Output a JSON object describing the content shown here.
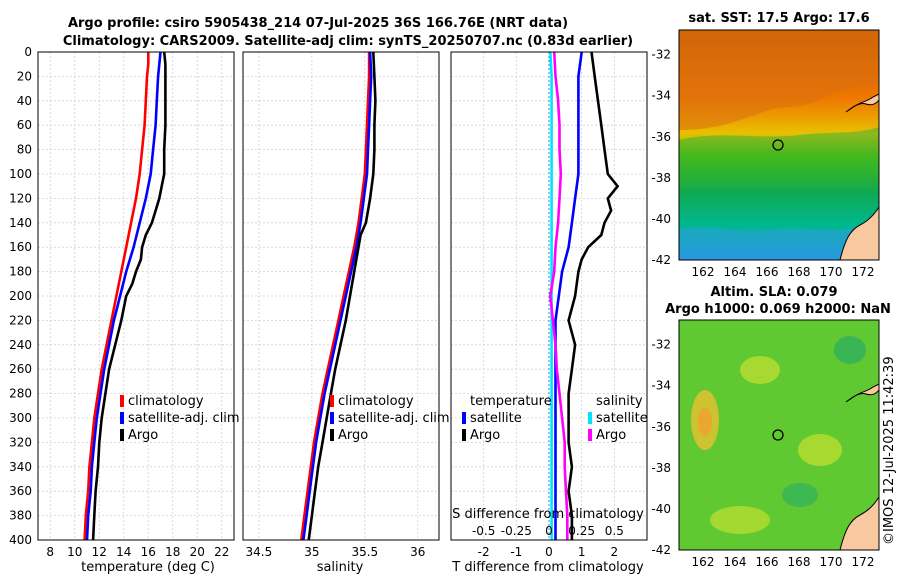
{
  "titles": {
    "line1": "Argo profile: csiro 5905438_214 07-Jul-2025 36S 166.76E (NRT data)",
    "line2": "Climatology: CARS2009. Satellite-adj clim: synTS_20250707.nc (0.83d earlier)"
  },
  "colors": {
    "clim": "#ff0000",
    "sat": "#0000ff",
    "argo": "#000000",
    "sat_s": "#00e5ff",
    "argo_s": "#ff00ff",
    "grid": "#d0d0d0"
  },
  "chart_data": [
    {
      "type": "line",
      "id": "temperature",
      "xlabel": "temperature (deg C)",
      "ylabel": "",
      "xlim": [
        7,
        23
      ],
      "ylim": [
        400,
        0
      ],
      "xticks": [
        "8",
        "10",
        "12",
        "14",
        "16",
        "18",
        "20",
        "22"
      ],
      "yticks": [
        "0",
        "20",
        "40",
        "60",
        "80",
        "100",
        "120",
        "140",
        "160",
        "180",
        "200",
        "220",
        "240",
        "260",
        "280",
        "300",
        "320",
        "340",
        "360",
        "380",
        "400"
      ],
      "legend": [
        "climatology",
        "satellite-adj. clim",
        "Argo"
      ],
      "series": [
        {
          "name": "climatology",
          "color": "clim",
          "points": [
            [
              16.0,
              0
            ],
            [
              16.0,
              10
            ],
            [
              15.9,
              20
            ],
            [
              15.8,
              40
            ],
            [
              15.7,
              60
            ],
            [
              15.5,
              80
            ],
            [
              15.3,
              100
            ],
            [
              15.0,
              120
            ],
            [
              14.6,
              140
            ],
            [
              14.2,
              160
            ],
            [
              13.8,
              180
            ],
            [
              13.4,
              200
            ],
            [
              13.0,
              220
            ],
            [
              12.6,
              240
            ],
            [
              12.2,
              260
            ],
            [
              11.9,
              280
            ],
            [
              11.6,
              300
            ],
            [
              11.4,
              320
            ],
            [
              11.2,
              340
            ],
            [
              11.1,
              360
            ],
            [
              10.9,
              380
            ],
            [
              10.8,
              400
            ]
          ]
        },
        {
          "name": "satellite-adj. clim",
          "color": "sat",
          "points": [
            [
              17.0,
              0
            ],
            [
              16.9,
              10
            ],
            [
              16.8,
              20
            ],
            [
              16.7,
              40
            ],
            [
              16.6,
              60
            ],
            [
              16.4,
              80
            ],
            [
              16.2,
              100
            ],
            [
              15.8,
              120
            ],
            [
              15.3,
              140
            ],
            [
              14.8,
              160
            ],
            [
              14.2,
              180
            ],
            [
              13.7,
              200
            ],
            [
              13.2,
              220
            ],
            [
              12.8,
              240
            ],
            [
              12.4,
              260
            ],
            [
              12.1,
              280
            ],
            [
              11.8,
              300
            ],
            [
              11.6,
              320
            ],
            [
              11.4,
              340
            ],
            [
              11.3,
              360
            ],
            [
              11.1,
              380
            ],
            [
              11.0,
              400
            ]
          ]
        },
        {
          "name": "Argo",
          "color": "argo",
          "points": [
            [
              17.3,
              0
            ],
            [
              17.4,
              10
            ],
            [
              17.4,
              20
            ],
            [
              17.4,
              40
            ],
            [
              17.4,
              60
            ],
            [
              17.3,
              80
            ],
            [
              17.3,
              100
            ],
            [
              17.1,
              110
            ],
            [
              16.9,
              120
            ],
            [
              16.6,
              130
            ],
            [
              16.3,
              140
            ],
            [
              15.8,
              150
            ],
            [
              15.5,
              160
            ],
            [
              15.4,
              170
            ],
            [
              15.0,
              180
            ],
            [
              14.7,
              190
            ],
            [
              14.2,
              200
            ],
            [
              13.8,
              220
            ],
            [
              13.3,
              240
            ],
            [
              12.8,
              260
            ],
            [
              12.5,
              280
            ],
            [
              12.2,
              300
            ],
            [
              12.0,
              320
            ],
            [
              11.9,
              340
            ],
            [
              11.7,
              360
            ],
            [
              11.6,
              380
            ],
            [
              11.5,
              400
            ]
          ]
        }
      ]
    },
    {
      "type": "line",
      "id": "salinity",
      "xlabel": "salinity",
      "ylabel": "",
      "xlim": [
        34.35,
        36.2
      ],
      "ylim": [
        400,
        0
      ],
      "xticks": [
        "34.5",
        "35",
        "35.5",
        "36"
      ],
      "legend": [
        "climatology",
        "satellite-adj. clim",
        "Argo"
      ],
      "series": [
        {
          "name": "climatology",
          "color": "clim",
          "points": [
            [
              35.54,
              0
            ],
            [
              35.54,
              20
            ],
            [
              35.53,
              40
            ],
            [
              35.52,
              60
            ],
            [
              35.51,
              80
            ],
            [
              35.5,
              100
            ],
            [
              35.47,
              120
            ],
            [
              35.44,
              140
            ],
            [
              35.4,
              160
            ],
            [
              35.35,
              180
            ],
            [
              35.3,
              200
            ],
            [
              35.25,
              220
            ],
            [
              35.2,
              240
            ],
            [
              35.15,
              260
            ],
            [
              35.1,
              280
            ],
            [
              35.06,
              300
            ],
            [
              35.02,
              320
            ],
            [
              34.99,
              340
            ],
            [
              34.96,
              360
            ],
            [
              34.93,
              380
            ],
            [
              34.9,
              400
            ]
          ]
        },
        {
          "name": "satellite-adj. clim",
          "color": "sat",
          "points": [
            [
              35.55,
              0
            ],
            [
              35.56,
              20
            ],
            [
              35.55,
              40
            ],
            [
              35.54,
              60
            ],
            [
              35.53,
              80
            ],
            [
              35.52,
              100
            ],
            [
              35.49,
              120
            ],
            [
              35.46,
              140
            ],
            [
              35.42,
              160
            ],
            [
              35.37,
              180
            ],
            [
              35.32,
              200
            ],
            [
              35.27,
              220
            ],
            [
              35.22,
              240
            ],
            [
              35.17,
              260
            ],
            [
              35.12,
              280
            ],
            [
              35.08,
              300
            ],
            [
              35.04,
              320
            ],
            [
              35.01,
              340
            ],
            [
              34.98,
              360
            ],
            [
              34.95,
              380
            ],
            [
              34.92,
              400
            ]
          ]
        },
        {
          "name": "Argo",
          "color": "argo",
          "points": [
            [
              35.58,
              0
            ],
            [
              35.59,
              20
            ],
            [
              35.6,
              40
            ],
            [
              35.59,
              60
            ],
            [
              35.59,
              80
            ],
            [
              35.58,
              100
            ],
            [
              35.55,
              120
            ],
            [
              35.51,
              140
            ],
            [
              35.46,
              150
            ],
            [
              35.44,
              160
            ],
            [
              35.4,
              180
            ],
            [
              35.36,
              200
            ],
            [
              35.32,
              220
            ],
            [
              35.27,
              240
            ],
            [
              35.22,
              260
            ],
            [
              35.18,
              280
            ],
            [
              35.14,
              300
            ],
            [
              35.1,
              320
            ],
            [
              35.06,
              340
            ],
            [
              35.03,
              360
            ],
            [
              35.0,
              380
            ],
            [
              34.97,
              400
            ]
          ]
        }
      ]
    },
    {
      "type": "line",
      "id": "differences",
      "xlabel": "T difference from climatology",
      "xlabel2": "S difference from climatology",
      "xlim": [
        -3,
        3
      ],
      "ylim": [
        400,
        0
      ],
      "xticks": [
        "-2",
        "-1",
        "0",
        "1",
        "2"
      ],
      "xticks2": [
        "-0.5",
        "-0.25",
        "0",
        "0.25",
        "0.5"
      ],
      "legend_t": {
        "title": "temperature",
        "items": [
          "satellite",
          "Argo"
        ]
      },
      "legend_s": {
        "title": "salinity",
        "items": [
          "satellite",
          "Argo"
        ]
      },
      "series": [
        {
          "name": "T satellite",
          "color": "sat",
          "points": [
            [
              1.0,
              0
            ],
            [
              0.9,
              20
            ],
            [
              0.9,
              40
            ],
            [
              0.9,
              60
            ],
            [
              0.9,
              80
            ],
            [
              0.9,
              100
            ],
            [
              0.8,
              120
            ],
            [
              0.7,
              140
            ],
            [
              0.6,
              160
            ],
            [
              0.4,
              180
            ],
            [
              0.3,
              200
            ],
            [
              0.2,
              220
            ],
            [
              0.2,
              240
            ],
            [
              0.2,
              260
            ],
            [
              0.2,
              280
            ],
            [
              0.2,
              300
            ],
            [
              0.2,
              320
            ],
            [
              0.2,
              340
            ],
            [
              0.2,
              360
            ],
            [
              0.2,
              380
            ],
            [
              0.2,
              400
            ]
          ]
        },
        {
          "name": "T Argo",
          "color": "argo",
          "points": [
            [
              1.3,
              0
            ],
            [
              1.4,
              20
            ],
            [
              1.5,
              40
            ],
            [
              1.6,
              60
            ],
            [
              1.7,
              80
            ],
            [
              1.8,
              100
            ],
            [
              2.1,
              110
            ],
            [
              1.8,
              120
            ],
            [
              1.9,
              130
            ],
            [
              1.7,
              140
            ],
            [
              1.6,
              150
            ],
            [
              1.2,
              160
            ],
            [
              1.0,
              170
            ],
            [
              0.9,
              180
            ],
            [
              0.8,
              200
            ],
            [
              0.6,
              220
            ],
            [
              0.8,
              240
            ],
            [
              0.7,
              260
            ],
            [
              0.6,
              280
            ],
            [
              0.6,
              300
            ],
            [
              0.6,
              320
            ],
            [
              0.7,
              340
            ],
            [
              0.6,
              360
            ],
            [
              0.7,
              380
            ],
            [
              0.7,
              400
            ]
          ]
        },
        {
          "name": "S satellite",
          "color": "sat_s",
          "points": [
            [
              0.01,
              0
            ],
            [
              0.02,
              20
            ],
            [
              0.02,
              60
            ],
            [
              0.02,
              100
            ],
            [
              0.02,
              140
            ],
            [
              0.02,
              180
            ],
            [
              0.02,
              220
            ],
            [
              0.02,
              260
            ],
            [
              0.02,
              300
            ],
            [
              0.02,
              340
            ],
            [
              0.02,
              380
            ],
            [
              0.02,
              400
            ]
          ]
        },
        {
          "name": "S Argo",
          "color": "argo_s",
          "points": [
            [
              0.04,
              0
            ],
            [
              0.05,
              20
            ],
            [
              0.07,
              40
            ],
            [
              0.08,
              60
            ],
            [
              0.08,
              80
            ],
            [
              0.09,
              100
            ],
            [
              0.08,
              120
            ],
            [
              0.07,
              140
            ],
            [
              0.05,
              160
            ],
            [
              0.04,
              180
            ],
            [
              0.01,
              200
            ],
            [
              0.03,
              220
            ],
            [
              0.05,
              240
            ],
            [
              0.06,
              260
            ],
            [
              0.08,
              280
            ],
            [
              0.1,
              300
            ],
            [
              0.12,
              320
            ],
            [
              0.12,
              340
            ],
            [
              0.13,
              360
            ],
            [
              0.14,
              380
            ],
            [
              0.14,
              400
            ]
          ]
        }
      ]
    },
    {
      "type": "heatmap",
      "id": "sst_map",
      "title": "sat. SST: 17.5 Argo: 17.6",
      "xticks": [
        "162",
        "164",
        "166",
        "168",
        "170",
        "172"
      ],
      "yticks": [
        "-32",
        "-34",
        "-36",
        "-38",
        "-40",
        "-42"
      ]
    },
    {
      "type": "heatmap",
      "id": "sla_map",
      "title": "Altim. SLA: 0.079",
      "subtitle": "Argo h1000: 0.069 h2000: NaN",
      "xticks": [
        "162",
        "164",
        "166",
        "168",
        "170",
        "172"
      ],
      "yticks": [
        "-32",
        "-34",
        "-36",
        "-38",
        "-40",
        "-42"
      ]
    }
  ],
  "credit": "©IMOS 12-Jul-2025 11:42:39"
}
